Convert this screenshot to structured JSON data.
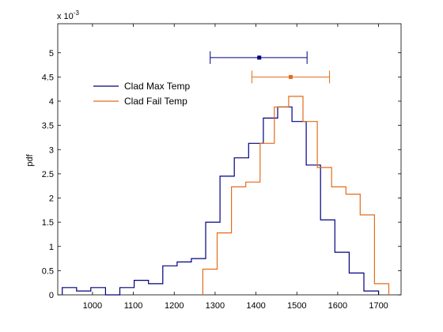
{
  "chart_data": {
    "type": "histogram",
    "xlabel": "",
    "ylabel": "pdf",
    "y_exponent_label": "x 10",
    "y_exponent_value": "-3",
    "xlim": [
      915,
      1755
    ],
    "ylim": [
      0,
      0.0056
    ],
    "xticks": [
      1000,
      1100,
      1200,
      1300,
      1400,
      1500,
      1600,
      1700
    ],
    "xtick_labels": [
      "1000",
      "1100",
      "1200",
      "1300",
      "1400",
      "1500",
      "1600",
      "1700"
    ],
    "yticks": [
      0,
      0.0005,
      0.001,
      0.0015,
      0.002,
      0.0025,
      0.003,
      0.0035,
      0.004,
      0.0045,
      0.005
    ],
    "ytick_labels": [
      "0",
      "0.5",
      "1",
      "1.5",
      "2",
      "2.5",
      "3",
      "3.5",
      "4",
      "4.5",
      "5"
    ],
    "grid": false,
    "legend_position": "upper-left",
    "series": [
      {
        "name": "Clad Max Temp",
        "color": "#00007f",
        "edges": [
          926,
          961,
          996,
          1032,
          1067,
          1102,
          1137,
          1172,
          1207,
          1242,
          1277,
          1312,
          1347,
          1382,
          1418,
          1453,
          1488,
          1523,
          1558,
          1593,
          1628,
          1664
        ],
        "values": [
          0.00015,
          8e-05,
          0.00015,
          0.0,
          0.00015,
          0.0003,
          0.00023,
          0.0006,
          0.00068,
          0.00075,
          0.0015,
          0.00245,
          0.00283,
          0.00313,
          0.00365,
          0.00388,
          0.00358,
          0.00268,
          0.00155,
          0.00088,
          0.00045,
          8e-05
        ],
        "mean": 1408,
        "interval": [
          1288,
          1525
        ]
      },
      {
        "name": "Clad Fail Temp",
        "color": "#e36c1b",
        "edges": [
          1270,
          1305,
          1340,
          1375,
          1410,
          1445,
          1480,
          1515,
          1550,
          1585,
          1620,
          1655,
          1690
        ],
        "values": [
          0.00053,
          0.00128,
          0.00223,
          0.00233,
          0.00313,
          0.00388,
          0.0041,
          0.00358,
          0.00263,
          0.00223,
          0.00208,
          0.00165,
          0.00023
        ],
        "mean": 1485,
        "interval": [
          1390,
          1580
        ]
      }
    ],
    "errorbar_levels": [
      0.0049,
      0.0045
    ]
  }
}
